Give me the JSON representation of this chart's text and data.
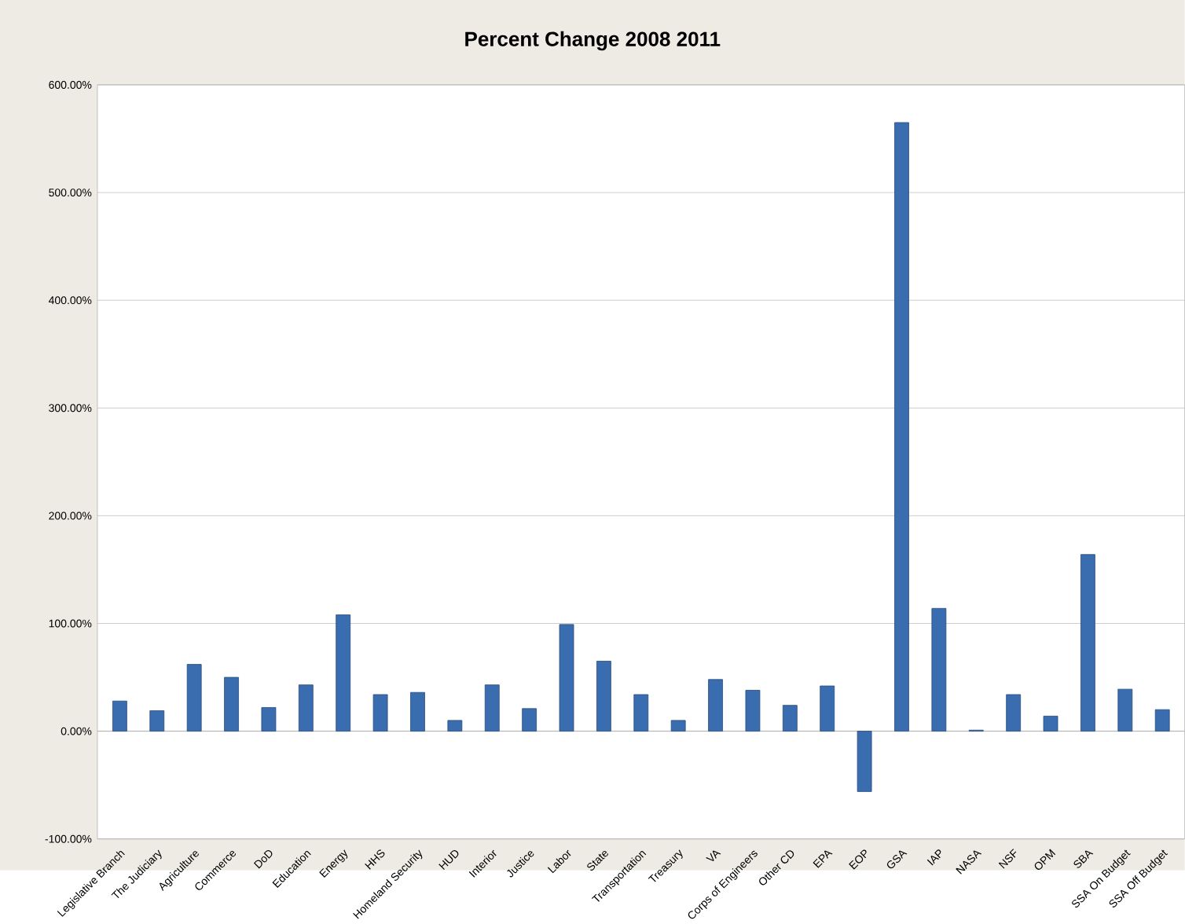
{
  "chart_data": {
    "type": "bar",
    "title": "Percent Change 2008 2011",
    "categories": [
      "Legislative Branch",
      "The Judiciary",
      "Agriculture",
      "Commerce",
      "DoD",
      "Education",
      "Energy",
      "HHS",
      "Homeland Security",
      "HUD",
      "Interior",
      "Justice",
      "Labor",
      "State",
      "Transportation",
      "Treasury",
      "VA",
      "Corps of Engineers",
      "Other CD",
      "EPA",
      "EOP",
      "GSA",
      "IAP",
      "NASA",
      "NSF",
      "OPM",
      "SBA",
      "SSA On Budget",
      "SSA Off Budget"
    ],
    "values": [
      28,
      19,
      62,
      50,
      22,
      43,
      108,
      34,
      36,
      10,
      43,
      21,
      99,
      65,
      34,
      10,
      48,
      38,
      24,
      42,
      -56,
      565,
      114,
      1,
      34,
      14,
      164,
      39,
      20
    ],
    "color": "#3a6cb0",
    "ylim": [
      -100,
      600
    ],
    "yticks": [
      {
        "value": -100,
        "label": "-100.00%"
      },
      {
        "value": 0,
        "label": "0.00%"
      },
      {
        "value": 100,
        "label": "100.00%"
      },
      {
        "value": 200,
        "label": "200.00%"
      },
      {
        "value": 300,
        "label": "300.00%"
      },
      {
        "value": 400,
        "label": "400.00%"
      },
      {
        "value": 500,
        "label": "500.00%"
      },
      {
        "value": 600,
        "label": "600.00%"
      }
    ],
    "grid": "y"
  }
}
